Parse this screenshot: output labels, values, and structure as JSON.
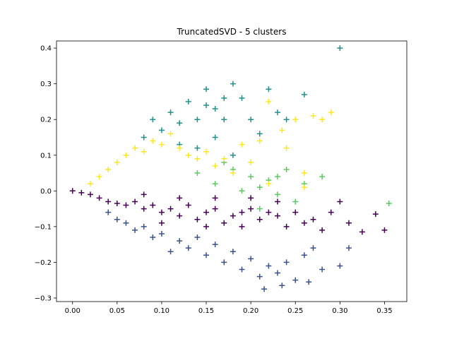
{
  "chart_data": {
    "type": "scatter",
    "title": "TruncatedSVD - 5 clusters",
    "xlabel": "",
    "ylabel": "",
    "xlim": [
      -0.018,
      0.375
    ],
    "ylim": [
      -0.31,
      0.42
    ],
    "x_ticks": [
      "0.00",
      "0.05",
      "0.10",
      "0.15",
      "0.20",
      "0.25",
      "0.30",
      "0.35"
    ],
    "x_tick_values": [
      0.0,
      0.05,
      0.1,
      0.15,
      0.2,
      0.25,
      0.3,
      0.35
    ],
    "y_ticks": [
      "−0.3",
      "−0.2",
      "−0.1",
      "0.0",
      "0.1",
      "0.2",
      "0.3",
      "0.4"
    ],
    "y_tick_values": [
      -0.3,
      -0.2,
      -0.1,
      0.0,
      0.1,
      0.2,
      0.3,
      0.4
    ],
    "marker": "+",
    "grid": false,
    "legend": "none",
    "series": [
      {
        "color": "#440154",
        "points": [
          [
            0.0,
            0.0
          ],
          [
            0.01,
            -0.005
          ],
          [
            0.02,
            -0.01
          ],
          [
            0.03,
            -0.02
          ],
          [
            0.04,
            -0.03
          ],
          [
            0.05,
            -0.035
          ],
          [
            0.06,
            -0.04
          ],
          [
            0.07,
            -0.03
          ],
          [
            0.08,
            -0.05
          ],
          [
            0.09,
            -0.04
          ],
          [
            0.1,
            -0.06
          ],
          [
            0.11,
            -0.05
          ],
          [
            0.12,
            -0.07
          ],
          [
            0.13,
            -0.04
          ],
          [
            0.14,
            -0.08
          ],
          [
            0.15,
            -0.06
          ],
          [
            0.16,
            -0.05
          ],
          [
            0.17,
            -0.09
          ],
          [
            0.18,
            -0.07
          ],
          [
            0.19,
            -0.06
          ],
          [
            0.2,
            -0.05
          ],
          [
            0.21,
            -0.08
          ],
          [
            0.22,
            -0.06
          ],
          [
            0.23,
            -0.07
          ],
          [
            0.24,
            -0.1
          ],
          [
            0.25,
            -0.06
          ],
          [
            0.26,
            -0.09
          ],
          [
            0.27,
            -0.08
          ],
          [
            0.29,
            -0.06
          ],
          [
            0.3,
            -0.03
          ],
          [
            0.31,
            -0.09
          ],
          [
            0.325,
            -0.115
          ],
          [
            0.34,
            -0.065
          ],
          [
            0.35,
            -0.11
          ],
          [
            0.28,
            -0.11
          ],
          [
            0.08,
            -0.01
          ],
          [
            0.12,
            -0.02
          ],
          [
            0.16,
            -0.02
          ],
          [
            0.2,
            -0.02
          ],
          [
            0.23,
            -0.03
          ],
          [
            0.1,
            -0.09
          ],
          [
            0.15,
            -0.1
          ],
          [
            0.19,
            -0.1
          ]
        ]
      },
      {
        "color": "#3b528b",
        "points": [
          [
            0.04,
            -0.06
          ],
          [
            0.06,
            -0.09
          ],
          [
            0.08,
            -0.1
          ],
          [
            0.1,
            -0.12
          ],
          [
            0.12,
            -0.14
          ],
          [
            0.13,
            -0.16
          ],
          [
            0.14,
            -0.13
          ],
          [
            0.15,
            -0.18
          ],
          [
            0.16,
            -0.15
          ],
          [
            0.17,
            -0.2
          ],
          [
            0.18,
            -0.17
          ],
          [
            0.19,
            -0.22
          ],
          [
            0.2,
            -0.19
          ],
          [
            0.21,
            -0.24
          ],
          [
            0.22,
            -0.21
          ],
          [
            0.215,
            -0.275
          ],
          [
            0.23,
            -0.23
          ],
          [
            0.235,
            -0.265
          ],
          [
            0.24,
            -0.2
          ],
          [
            0.25,
            -0.25
          ],
          [
            0.265,
            -0.255
          ],
          [
            0.27,
            -0.16
          ],
          [
            0.28,
            -0.22
          ],
          [
            0.3,
            -0.21
          ],
          [
            0.31,
            -0.16
          ],
          [
            0.11,
            -0.17
          ],
          [
            0.09,
            -0.13
          ],
          [
            0.07,
            -0.11
          ],
          [
            0.05,
            -0.08
          ],
          [
            0.26,
            -0.18
          ]
        ]
      },
      {
        "color": "#21918c",
        "points": [
          [
            0.08,
            0.15
          ],
          [
            0.09,
            0.2
          ],
          [
            0.1,
            0.17
          ],
          [
            0.11,
            0.22
          ],
          [
            0.12,
            0.19
          ],
          [
            0.13,
            0.25
          ],
          [
            0.14,
            0.2
          ],
          [
            0.15,
            0.285
          ],
          [
            0.16,
            0.23
          ],
          [
            0.17,
            0.26
          ],
          [
            0.18,
            0.3
          ],
          [
            0.19,
            0.26
          ],
          [
            0.2,
            0.2
          ],
          [
            0.21,
            0.16
          ],
          [
            0.22,
            0.285
          ],
          [
            0.23,
            0.22
          ],
          [
            0.24,
            0.2
          ],
          [
            0.26,
            0.27
          ],
          [
            0.3,
            0.4
          ],
          [
            0.14,
            0.12
          ],
          [
            0.16,
            0.15
          ],
          [
            0.18,
            0.1
          ],
          [
            0.12,
            0.13
          ],
          [
            0.17,
            0.2
          ],
          [
            0.15,
            0.24
          ]
        ]
      },
      {
        "color": "#5ec962",
        "points": [
          [
            0.14,
            0.05
          ],
          [
            0.16,
            0.02
          ],
          [
            0.18,
            0.06
          ],
          [
            0.2,
            0.04
          ],
          [
            0.21,
            0.01
          ],
          [
            0.22,
            0.03
          ],
          [
            0.23,
            -0.01
          ],
          [
            0.24,
            0.06
          ],
          [
            0.25,
            -0.03
          ],
          [
            0.26,
            0.02
          ],
          [
            0.28,
            0.04
          ],
          [
            0.355,
            -0.035
          ],
          [
            0.17,
            0.08
          ],
          [
            0.19,
            0.0
          ],
          [
            0.21,
            -0.05
          ],
          [
            0.23,
            0.04
          ]
        ]
      },
      {
        "color": "#fde725",
        "points": [
          [
            0.02,
            0.02
          ],
          [
            0.03,
            0.04
          ],
          [
            0.04,
            0.06
          ],
          [
            0.05,
            0.08
          ],
          [
            0.06,
            0.1
          ],
          [
            0.07,
            0.12
          ],
          [
            0.08,
            0.11
          ],
          [
            0.09,
            0.14
          ],
          [
            0.1,
            0.13
          ],
          [
            0.11,
            0.16
          ],
          [
            0.12,
            0.12
          ],
          [
            0.13,
            0.1
          ],
          [
            0.14,
            0.09
          ],
          [
            0.15,
            0.11
          ],
          [
            0.16,
            0.07
          ],
          [
            0.17,
            0.09
          ],
          [
            0.18,
            0.05
          ],
          [
            0.19,
            0.13
          ],
          [
            0.2,
            0.08
          ],
          [
            0.21,
            0.14
          ],
          [
            0.22,
            0.25
          ],
          [
            0.235,
            0.17
          ],
          [
            0.24,
            0.12
          ],
          [
            0.25,
            0.2
          ],
          [
            0.26,
            0.05
          ],
          [
            0.27,
            0.21
          ],
          [
            0.28,
            0.2
          ],
          [
            0.29,
            0.22
          ],
          [
            0.26,
            0.01
          ],
          [
            0.22,
            0.02
          ]
        ]
      }
    ]
  }
}
